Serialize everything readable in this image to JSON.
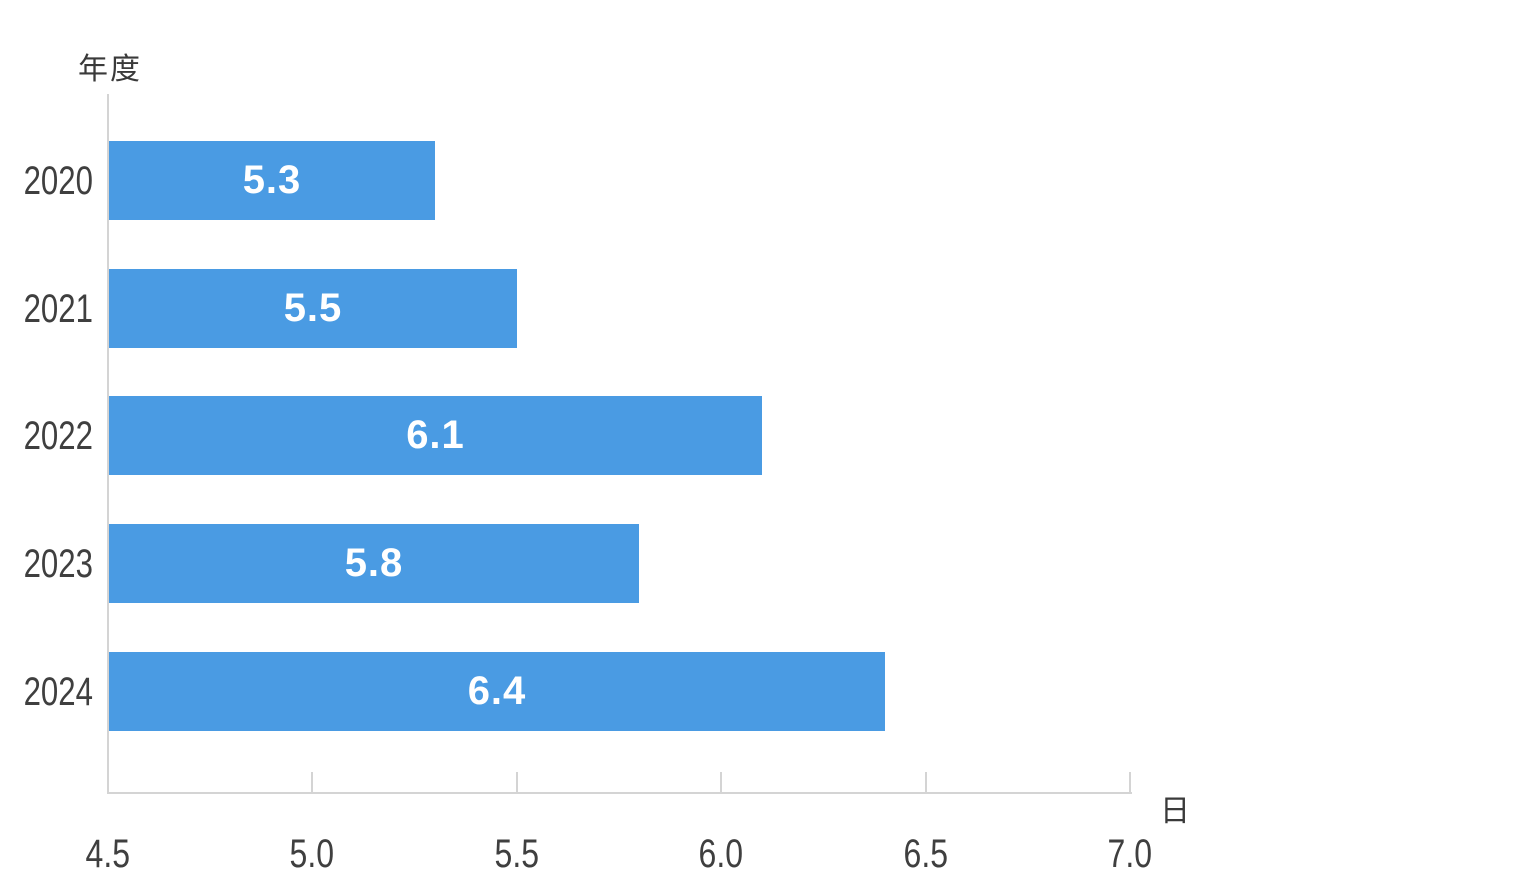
{
  "chart_data": {
    "type": "bar",
    "orientation": "horizontal",
    "title": "",
    "categories": [
      "2020",
      "2021",
      "2022",
      "2023",
      "2024"
    ],
    "values": [
      5.3,
      5.5,
      6.1,
      5.8,
      6.4
    ],
    "value_labels": [
      "5.3",
      "5.5",
      "6.1",
      "5.8",
      "6.4"
    ],
    "ylabel": "年度",
    "xlabel": "日",
    "xlim": [
      4.5,
      7.0
    ],
    "xticks": [
      4.5,
      5.0,
      5.5,
      6.0,
      6.5,
      7.0
    ],
    "xtick_labels": [
      "4.5",
      "5.0",
      "5.5",
      "6.0",
      "6.5",
      "7.0"
    ],
    "bar_color": "#4A9BE3",
    "axis_color": "#D4D4D4",
    "text_color": "#3F3F3F",
    "value_label_color": "#FFFFFF",
    "grid": false,
    "legend": false
  }
}
